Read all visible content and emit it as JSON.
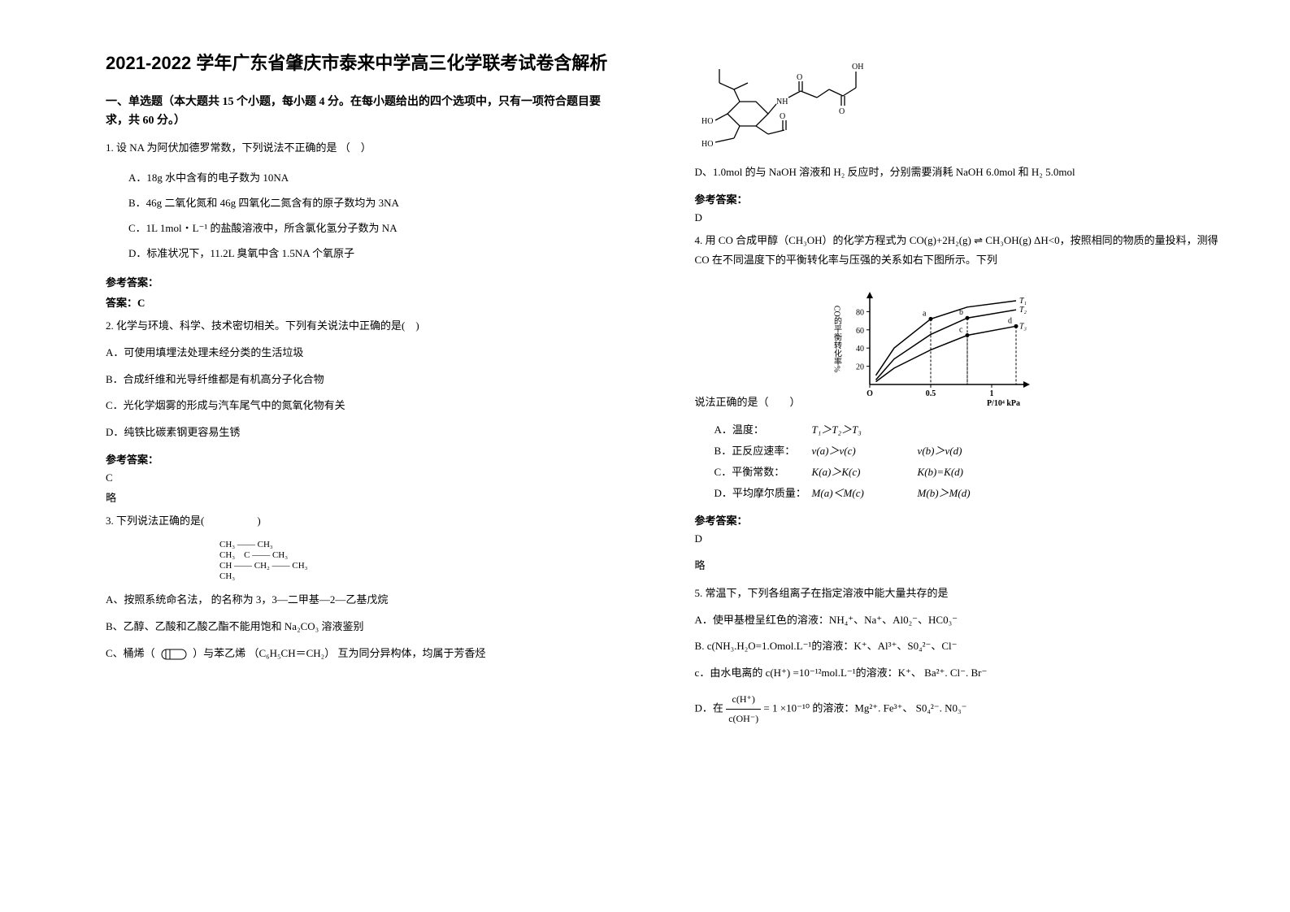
{
  "title": "2021-2022 学年广东省肇庆市泰来中学高三化学联考试卷含解析",
  "section1": {
    "heading": "一、单选题（本大题共 15 个小题，每小题 4 分。在每小题给出的四个选项中，只有一项符合题目要求，共 60 分。）"
  },
  "q1": {
    "stem": "1. 设 NA 为阿伏加德罗常数，下列说法不正确的是 （　）",
    "a": "A．18g 水中含有的电子数为 10NA",
    "b": "B．46g 二氧化氮和 46g 四氧化二氮含有的原子数均为 3NA",
    "c": "C．1L 1mol・L⁻¹ 的盐酸溶液中，所含氯化氢分子数为 NA",
    "d": "D．标准状况下，11.2L 臭氧中含 1.5NA 个氧原子",
    "ans_head": "参考答案：",
    "ans": "答案：C"
  },
  "q2": {
    "stem": "2. 化学与环境、科学、技术密切相关。下列有关说法中正确的是(　)",
    "a": "A．可使用填埋法处理未经分类的生活垃圾",
    "b": "B．合成纤维和光导纤维都是有机高分子化合物",
    "c": "C．光化学烟雾的形成与汽车尾气中的氮氧化物有关",
    "d": "D．纯铁比碳素钢更容易生锈",
    "ans_head": "参考答案：",
    "ans": "C",
    "note": "略"
  },
  "q3": {
    "stem": "3. 下列说法正确的是(　　　　　)",
    "a_pre": "A、按照系统命名法，",
    "a_post": " 的名称为 3，3—二甲基—2—乙基戊烷",
    "b": "B、乙醇、乙酸和乙酸乙酯不能用饱和 Na₂CO₃ 溶液鉴别",
    "c_pre": "C、桶烯（",
    "c_mid": "）与苯乙烯",
    "c_formula": "（C₆H₅CH＝CH₂）",
    "c_post": "互为同分异构体，均属于芳香烃",
    "struct": {
      "lines": [
        "CH₃ —— CH₃",
        "CH₃　C —— CH₃",
        "CH —— CH₂ —— CH₃",
        "CH₃"
      ]
    },
    "d": "D、1.0mol 的与 NaOH 溶液和 H₂ 反应时，分别需要消耗 NaOH 6.0mol 和 H₂ 5.0mol",
    "ans_head": "参考答案：",
    "ans": "D"
  },
  "q4": {
    "stem_a": "4. 用 CO 合成甲醇（CH₃OH）的化学方程式为 CO(g)+2H₂(g) ⇌ CH₃OH(g) ΔH<0，按照相同的物质的量投料，测得 CO 在不同温度下的平衡转化率与压强的关系如右下图所示。下列",
    "stem_b": "说法正确的是（　　）",
    "chart": {
      "type": "line",
      "ylabel": "CO的平衡转化率%",
      "xlabel": "P/10⁴ kPa",
      "xlim": [
        0,
        1.3
      ],
      "ylim": [
        0,
        100
      ],
      "xticks": [
        0,
        0.5,
        1.0
      ],
      "yticks": [
        20,
        40,
        60,
        80
      ],
      "series": [
        {
          "name": "T₁",
          "points": [
            [
              0.05,
              10
            ],
            [
              0.2,
              40
            ],
            [
              0.5,
              72
            ],
            [
              0.8,
              85
            ],
            [
              1.2,
              92
            ]
          ],
          "markers": [
            {
              "x": 0.5,
              "y": 72,
              "label": "a"
            }
          ]
        },
        {
          "name": "T₂",
          "points": [
            [
              0.05,
              5
            ],
            [
              0.2,
              28
            ],
            [
              0.5,
              55
            ],
            [
              0.8,
              73
            ],
            [
              1.2,
              82
            ]
          ],
          "markers": [
            {
              "x": 0.8,
              "y": 73,
              "label": "b"
            }
          ]
        },
        {
          "name": "T₃",
          "points": [
            [
              0.05,
              3
            ],
            [
              0.2,
              18
            ],
            [
              0.5,
              38
            ],
            [
              0.8,
              54
            ],
            [
              1.2,
              64
            ]
          ],
          "markers": [
            {
              "x": 0.8,
              "y": 54,
              "label": "c"
            },
            {
              "x": 1.2,
              "y": 64,
              "label": "d"
            }
          ]
        }
      ],
      "line_color": "#000000",
      "background_color": "#ffffff"
    },
    "rows": [
      {
        "a": "A．温度：",
        "b": "T₁＞T₂＞T₃",
        "c": ""
      },
      {
        "a": "B．正反应速率：",
        "b": "v(a)＞v(c)",
        "c": "v(b)＞v(d)"
      },
      {
        "a": "C．平衡常数：",
        "b": "K(a)＞K(c)",
        "c": "K(b)=K(d)"
      },
      {
        "a": "D．平均摩尔质量：",
        "b": "M(a)＜M(c)",
        "c": "M(b)＞M(d)"
      }
    ],
    "ans_head": "参考答案：",
    "ans": "D",
    "note": "略"
  },
  "q5": {
    "stem": "5. 常温下，下列各组离子在指定溶液中能大量共存的是",
    "a": "A．使甲基橙呈红色的溶液：NH₄⁺、Na⁺、Al0₂⁻、HC0₃⁻",
    "b": "B. c(NH₃.H₂O=1.Omol.L⁻¹的溶液：K⁺、Al³⁺、S0₄²⁻、Cl⁻",
    "c": "c．由水电离的 c(H⁺) =10⁻¹²mol.L⁻¹的溶液：K⁺、 Ba²⁺. Cl⁻. Br⁻",
    "d_pre": "D．在",
    "d_frac_num": "c(H⁺)",
    "d_frac_den": "c(OH⁻)",
    "d_eq": "= 1",
    "d_post": " ×10⁻¹⁰ 的溶液：Mg²⁺. Fe³⁺、 S0₄²⁻. N0₃⁻"
  }
}
